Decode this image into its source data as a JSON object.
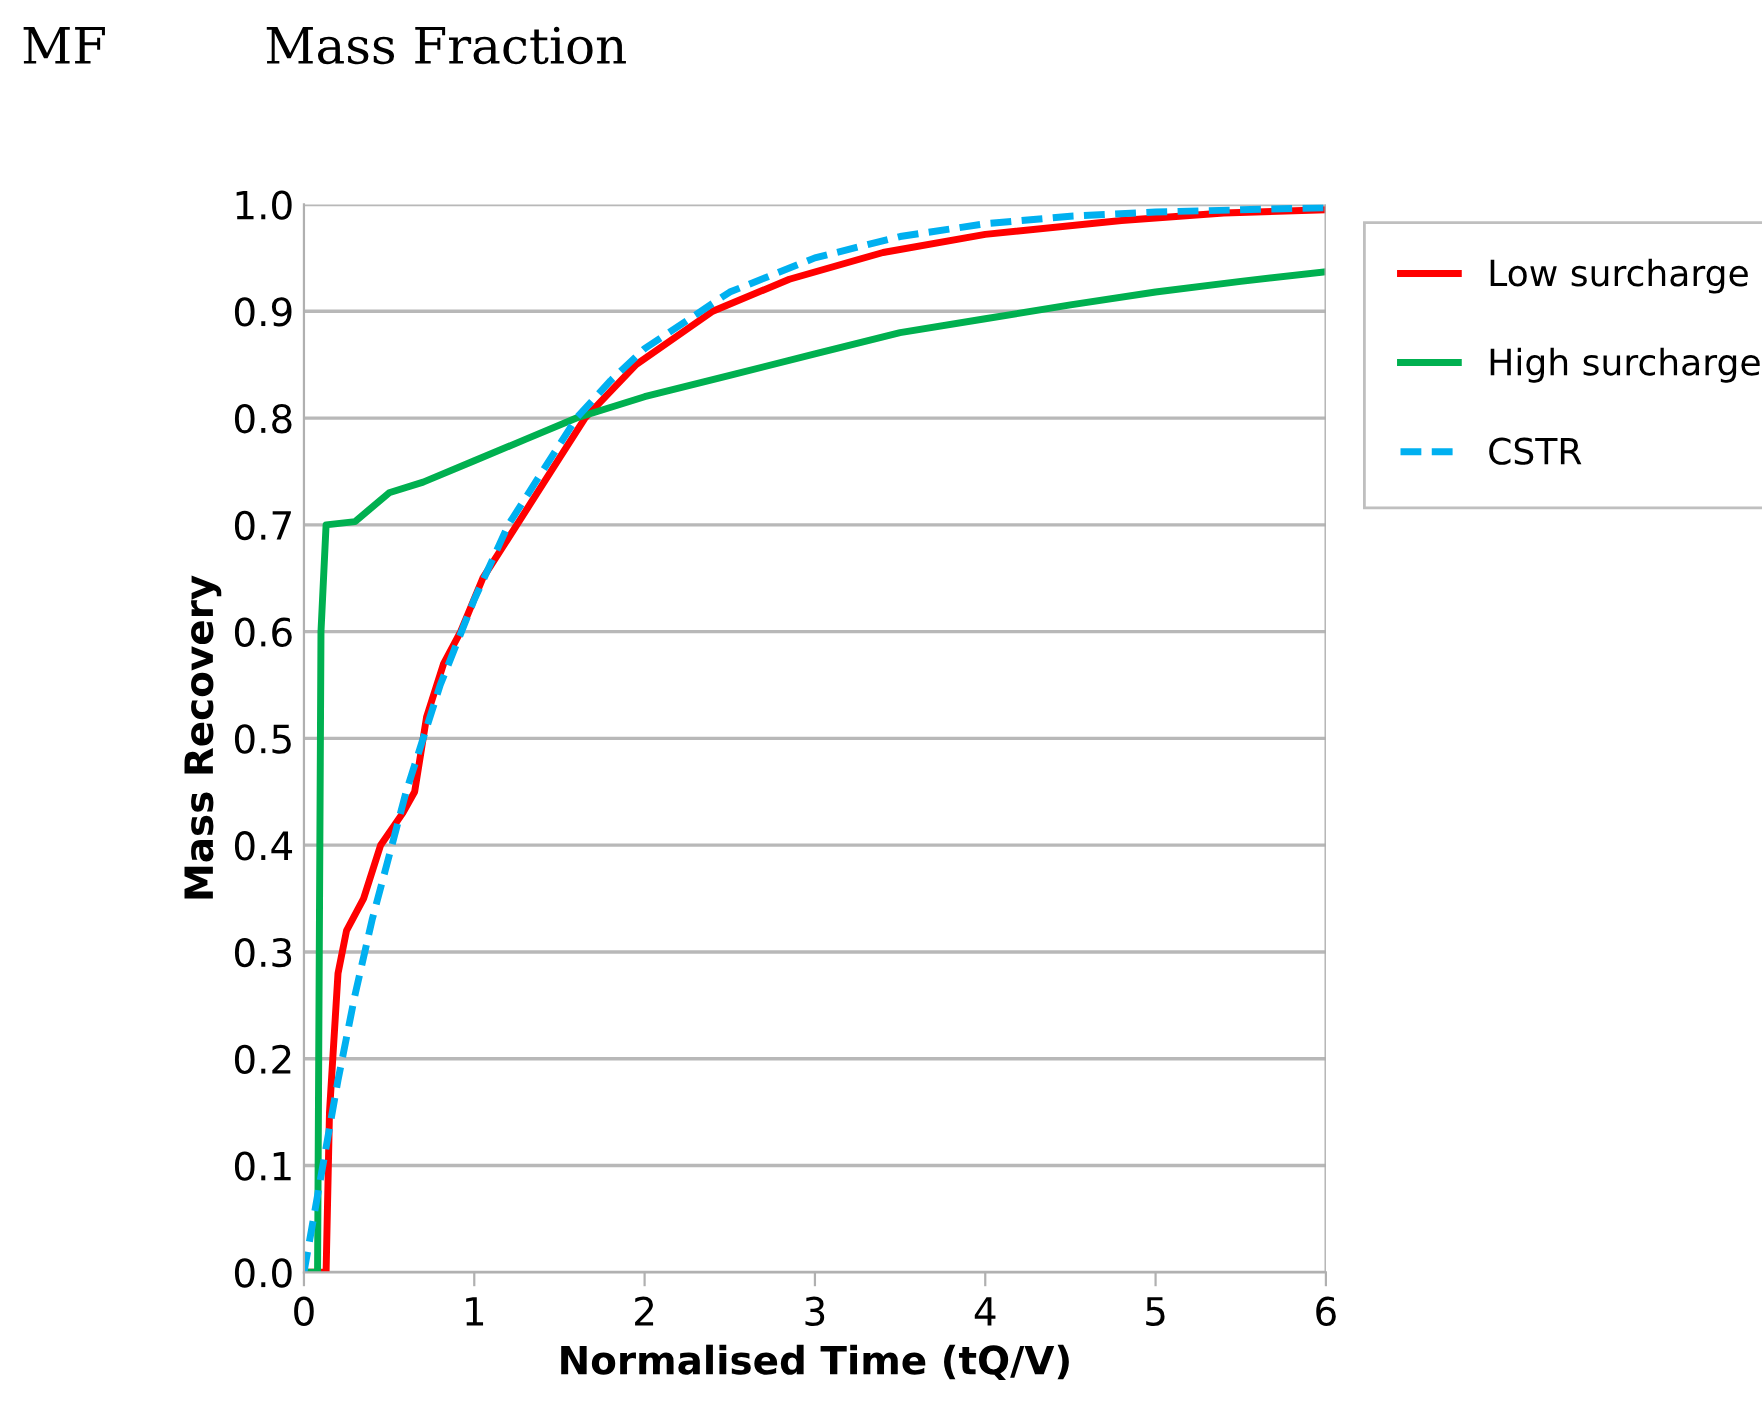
{
  "chart_data": {
    "type": "line",
    "xlabel": "Normalised Time (tQ/V)",
    "ylabel": "Mass Recovery",
    "annotations": [
      "MF",
      "Mass Fraction"
    ],
    "xlim": [
      0,
      6
    ],
    "xticks": [
      0,
      1,
      2,
      3,
      4,
      5,
      6
    ],
    "ylim": [
      0,
      1.0
    ],
    "yticks": [
      {
        "value": 0,
        "label": "0.0"
      },
      0.1,
      0.2,
      0.3,
      0.4,
      0.5,
      0.6,
      0.7,
      0.8,
      0.9,
      {
        "value": 1.0,
        "label": "1.0"
      }
    ],
    "grid": "y",
    "legend": "top right",
    "marker": "none",
    "series": [
      {
        "name": "Low surcharge",
        "color": "#ff0000",
        "line_style": "solid",
        "x": [
          0,
          0.13,
          0.15,
          0.2,
          0.25,
          0.35,
          0.45,
          0.58,
          0.65,
          0.72,
          0.82,
          0.92,
          1.05,
          1.25,
          1.45,
          1.65,
          1.95,
          2.4,
          2.85,
          3.4,
          4,
          4.8,
          5.4,
          6
        ],
        "values": [
          0,
          0,
          0.15,
          0.28,
          0.32,
          0.35,
          0.4,
          0.43,
          0.45,
          0.52,
          0.57,
          0.6,
          0.65,
          0.7,
          0.75,
          0.8,
          0.85,
          0.9,
          0.93,
          0.955,
          0.972,
          0.985,
          0.992,
          0.995
        ]
      },
      {
        "name": "High surcharge",
        "color": "#00b050",
        "line_style": "solid",
        "x": [
          0,
          0.08,
          0.1,
          0.13,
          0.3,
          0.5,
          0.7,
          1.0,
          1.3,
          1.6,
          2.0,
          2.5,
          3.0,
          3.5,
          4,
          4.5,
          5,
          5.5,
          6
        ],
        "values": [
          0,
          0,
          0.6,
          0.7,
          0.703,
          0.73,
          0.74,
          0.76,
          0.78,
          0.8,
          0.82,
          0.84,
          0.86,
          0.88,
          0.893,
          0.906,
          0.918,
          0.928,
          0.937
        ]
      },
      {
        "name": "CSTR",
        "color": "#00b0f0",
        "line_style": "dashed",
        "x": [
          0,
          0.1,
          0.2,
          0.3,
          0.4,
          0.5,
          0.6,
          0.7,
          0.8,
          1.0,
          1.2,
          1.4,
          1.6,
          1.8,
          2.0,
          2.5,
          3,
          3.5,
          4,
          4.5,
          5,
          6
        ],
        "values": [
          0,
          0.09,
          0.18,
          0.26,
          0.33,
          0.39,
          0.45,
          0.5,
          0.55,
          0.63,
          0.7,
          0.75,
          0.8,
          0.835,
          0.865,
          0.918,
          0.95,
          0.97,
          0.982,
          0.989,
          0.993,
          0.997
        ]
      }
    ]
  }
}
